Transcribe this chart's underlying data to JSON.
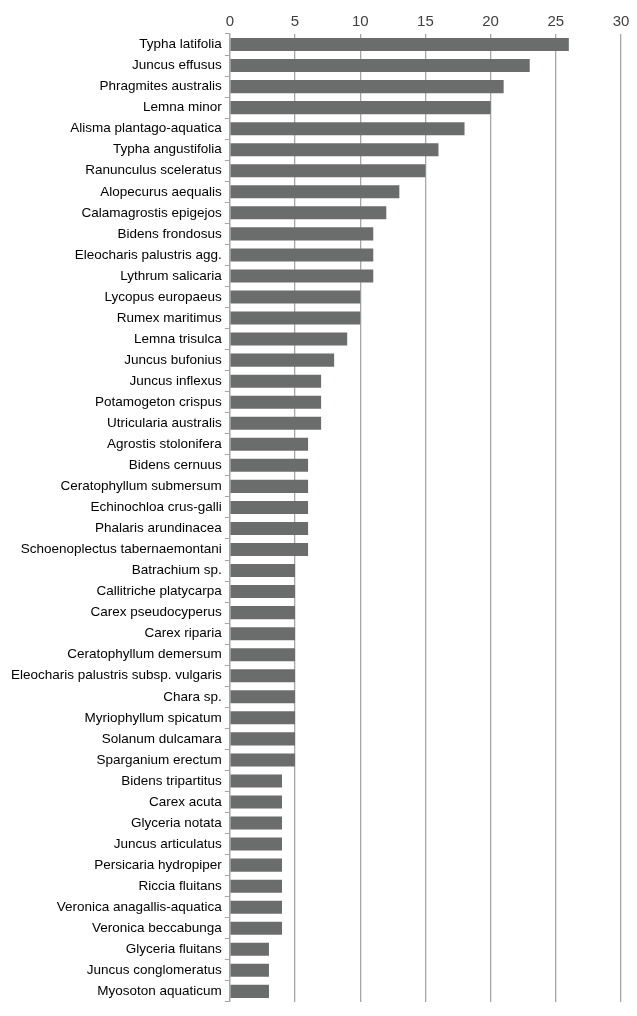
{
  "chart_data": {
    "type": "bar",
    "orientation": "horizontal",
    "color": "#6b6d6d",
    "categories": [
      "Typha latifolia",
      "Juncus effusus",
      "Phragmites australis",
      "Lemna minor",
      "Alisma plantago-aquatica",
      "Typha angustifolia",
      "Ranunculus sceleratus",
      "Alopecurus aequalis",
      "Calamagrostis epigejos",
      "Bidens frondosus",
      "Eleocharis palustris agg.",
      "Lythrum salicaria",
      "Lycopus europaeus",
      "Rumex maritimus",
      "Lemna trisulca",
      "Juncus bufonius",
      "Juncus inflexus",
      "Potamogeton crispus",
      "Utricularia australis",
      "Agrostis stolonifera",
      "Bidens cernuus",
      "Ceratophyllum submersum",
      "Echinochloa crus-galli",
      "Phalaris arundinacea",
      "Schoenoplectus tabernaemontani",
      "Batrachium sp.",
      "Callitriche platycarpa",
      "Carex pseudocyperus",
      "Carex riparia",
      "Ceratophyllum demersum",
      "Eleocharis palustris subsp. vulgaris",
      "Chara sp.",
      "Myriophyllum spicatum",
      "Solanum dulcamara",
      "Sparganium erectum",
      "Bidens tripartitus",
      "Carex acuta",
      "Glyceria notata",
      "Juncus articulatus",
      "Persicaria hydropiper",
      "Riccia fluitans",
      "Veronica anagallis-aquatica",
      "Veronica beccabunga",
      "Glyceria fluitans",
      "Juncus conglomeratus",
      "Myosoton aquaticum"
    ],
    "values": [
      26,
      23,
      21,
      20,
      18,
      16,
      15,
      13,
      12,
      11,
      11,
      11,
      10,
      10,
      9,
      8,
      7,
      7,
      7,
      6,
      6,
      6,
      6,
      6,
      6,
      5,
      5,
      5,
      5,
      5,
      5,
      5,
      5,
      5,
      5,
      4,
      4,
      4,
      4,
      4,
      4,
      4,
      4,
      3,
      3,
      3
    ],
    "xlim": [
      0,
      30
    ],
    "xticks": [
      0,
      5,
      10,
      15,
      20,
      25,
      30
    ],
    "grid": "x",
    "legend": false
  }
}
